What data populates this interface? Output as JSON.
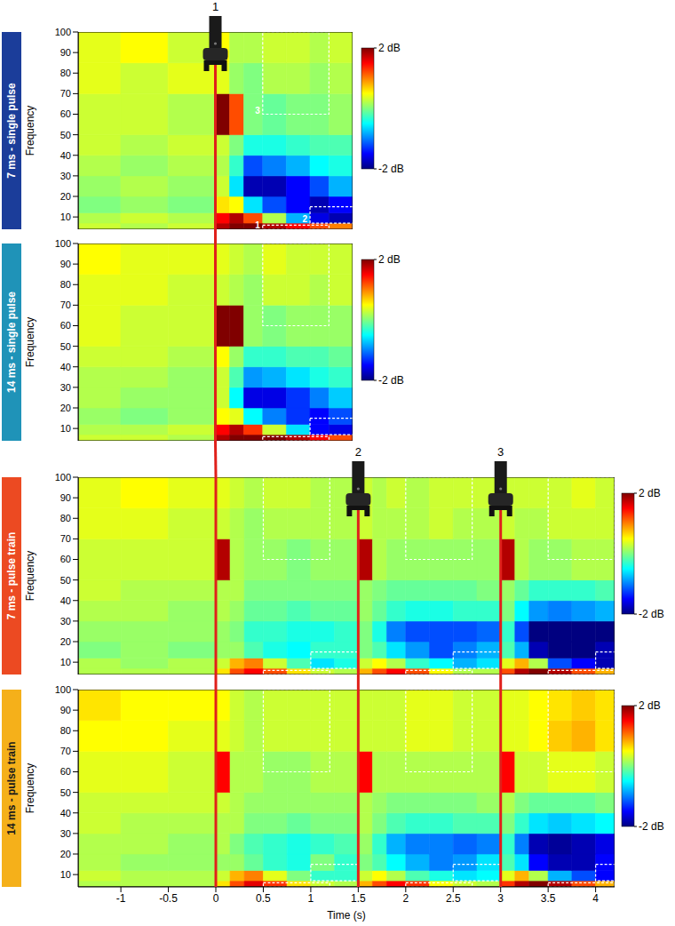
{
  "chart_data": [
    {
      "type": "heatmap",
      "title": "7 ms - single pulse",
      "color": "#1b3d9a",
      "ylabel": "Frequency",
      "xlim": [
        -1.45,
        1.45
      ],
      "ylim": [
        4,
        100
      ],
      "yticks": [
        10,
        20,
        30,
        40,
        50,
        60,
        70,
        80,
        90,
        100
      ],
      "tick_labels": "y",
      "t_edges": [
        -1.45,
        -1,
        -0.5,
        0,
        0.15,
        0.3,
        0.5,
        0.75,
        1,
        1.2,
        1.45
      ],
      "f_edges": [
        4,
        7,
        12,
        20,
        30,
        40,
        50,
        70,
        85,
        100
      ],
      "cells": [
        [
          0.3,
          0.2,
          0.3,
          1.8,
          2,
          2,
          1.8,
          1.5,
          1.2,
          1.0
        ],
        [
          0.2,
          0.3,
          0.2,
          1.5,
          1.8,
          1.2,
          0.2,
          -0.8,
          -1.6,
          -1.8
        ],
        [
          0,
          0.1,
          0,
          0.6,
          0.5,
          -0.6,
          -1.2,
          -1.5,
          -1.8,
          -1.5
        ],
        [
          0.1,
          0.2,
          0.1,
          0.3,
          -0.6,
          -1.8,
          -1.8,
          -1.5,
          -1.2,
          -0.8
        ],
        [
          0.2,
          0.1,
          0.2,
          0.2,
          -0.3,
          -1.2,
          -1.0,
          -0.8,
          -0.5,
          -0.4
        ],
        [
          0.3,
          0.2,
          0.3,
          0.3,
          0,
          -0.4,
          -0.4,
          -0.3,
          -0.2,
          -0.2
        ],
        [
          0.3,
          0.3,
          0.2,
          2,
          1.2,
          0,
          -0.1,
          0,
          0,
          0.1
        ],
        [
          0.4,
          0.3,
          0.4,
          0.4,
          0.1,
          0,
          0.2,
          0.2,
          0.1,
          0.2
        ],
        [
          0.4,
          0.5,
          0.3,
          0.5,
          0.2,
          0.2,
          0.3,
          0.3,
          0.2,
          0.3
        ]
      ],
      "colorbar": {
        "range": [
          -2,
          2
        ],
        "ticks": [
          {
            "value": 2,
            "label": "2 dB"
          },
          {
            "value": -2,
            "label": "-2 dB"
          }
        ]
      },
      "stimuli": [
        {
          "t": 0,
          "label": "1"
        }
      ],
      "rois": [
        {
          "label": "1",
          "t": [
            0.5,
            1.2
          ],
          "f": [
            4,
            6
          ]
        },
        {
          "label": "2",
          "t": [
            1,
            1.5
          ],
          "f": [
            7,
            15
          ]
        },
        {
          "label": "3",
          "t": [
            0.5,
            1.2
          ],
          "f": [
            60,
            100
          ]
        }
      ]
    },
    {
      "type": "heatmap",
      "title": "14 ms - single pulse",
      "color": "#1f93b8",
      "ylabel": "Frequency",
      "xlim": [
        -1.45,
        1.45
      ],
      "ylim": [
        4,
        100
      ],
      "yticks": [
        10,
        20,
        30,
        40,
        50,
        60,
        70,
        80,
        90,
        100
      ],
      "tick_labels": "y",
      "t_edges": [
        -1.45,
        -1,
        -0.5,
        0,
        0.15,
        0.3,
        0.5,
        0.75,
        1,
        1.2,
        1.45
      ],
      "f_edges": [
        4,
        7,
        12,
        20,
        30,
        40,
        50,
        70,
        85,
        100
      ],
      "cells": [
        [
          0.3,
          0.3,
          0.2,
          1.8,
          2,
          2,
          2,
          1.8,
          1.5,
          1.2
        ],
        [
          0.2,
          0.2,
          0.3,
          1.5,
          1.8,
          1.3,
          0.3,
          -0.6,
          -1.5,
          -1.6
        ],
        [
          0.1,
          0,
          0.1,
          0.5,
          0.4,
          -0.5,
          -1.0,
          -1.3,
          -1.5,
          -1.2
        ],
        [
          0.2,
          0.1,
          0.1,
          0.3,
          -0.5,
          -1.6,
          -1.6,
          -1.3,
          -1.0,
          -0.7
        ],
        [
          0.2,
          0.2,
          0.1,
          0.3,
          -0.2,
          -0.9,
          -0.8,
          -0.6,
          -0.4,
          -0.3
        ],
        [
          0.3,
          0.3,
          0.2,
          0.5,
          0.1,
          -0.3,
          -0.3,
          -0.2,
          -0.2,
          -0.1
        ],
        [
          0.4,
          0.3,
          0.3,
          2,
          2,
          0.1,
          0,
          0.1,
          0.1,
          0.1
        ],
        [
          0.4,
          0.4,
          0.3,
          0.3,
          0.2,
          0.1,
          0.3,
          0.3,
          0.2,
          0.3
        ],
        [
          0.5,
          0.4,
          0.4,
          0.4,
          0.3,
          0.2,
          0.4,
          0.3,
          0.3,
          0.3
        ]
      ],
      "colorbar": {
        "range": [
          -2,
          2
        ],
        "ticks": [
          {
            "value": 2,
            "label": "2 dB"
          },
          {
            "value": -2,
            "label": "-2 dB"
          }
        ]
      },
      "stimuli": [
        {
          "t": 0
        }
      ],
      "rois": [
        {
          "t": [
            0.5,
            1.2
          ],
          "f": [
            4,
            6
          ]
        },
        {
          "t": [
            1,
            1.5
          ],
          "f": [
            7,
            15
          ]
        },
        {
          "t": [
            0.5,
            1.2
          ],
          "f": [
            60,
            100
          ]
        }
      ]
    },
    {
      "type": "heatmap",
      "title": "7 ms - pulse train",
      "color": "#ec4a22",
      "ylabel": "Frequency",
      "xlim": [
        -1.45,
        4.2
      ],
      "ylim": [
        4,
        100
      ],
      "yticks": [
        10,
        20,
        30,
        40,
        50,
        60,
        70,
        80,
        90,
        100
      ],
      "tick_labels": "y",
      "t_edges": [
        -1.45,
        -1,
        -0.5,
        0,
        0.15,
        0.3,
        0.5,
        0.75,
        1,
        1.25,
        1.5,
        1.65,
        1.8,
        2,
        2.25,
        2.5,
        2.75,
        3,
        3.15,
        3.3,
        3.5,
        3.75,
        4,
        4.2
      ],
      "f_edges": [
        4,
        7,
        12,
        20,
        30,
        40,
        50,
        70,
        85,
        100
      ],
      "cells": [
        [
          0.2,
          0.2,
          0.2,
          0.6,
          1.2,
          1.5,
          1.2,
          0.6,
          0.3,
          0.2,
          0.8,
          1.2,
          1.5,
          1.2,
          0.5,
          0.2,
          0.2,
          1.2,
          1.8,
          2,
          1.8,
          1.2,
          0.8
        ],
        [
          0.2,
          0.1,
          0.2,
          0.3,
          0.8,
          1.0,
          0.3,
          -0.2,
          -0.6,
          -0.4,
          0.3,
          0.5,
          0.2,
          -0.3,
          -0.5,
          -0.8,
          -0.6,
          0.4,
          0.8,
          0.2,
          -1.2,
          -1.5,
          -1.8
        ],
        [
          0,
          0.1,
          0,
          0.1,
          0.1,
          -0.2,
          -0.4,
          -0.5,
          -0.3,
          -0.3,
          0,
          -0.2,
          -0.6,
          -0.9,
          -1.2,
          -1.0,
          -0.8,
          -0.2,
          -0.8,
          -1.8,
          -2,
          -2,
          -1.8
        ],
        [
          0.1,
          0.1,
          0.1,
          0.1,
          0,
          -0.3,
          -0.3,
          -0.4,
          -0.4,
          -0.3,
          0,
          -0.4,
          -1.0,
          -1.2,
          -1.2,
          -1.2,
          -1.1,
          -0.3,
          -1.2,
          -2,
          -2,
          -2,
          -2
        ],
        [
          0.2,
          0.2,
          0.1,
          0.2,
          0.1,
          -0.1,
          -0.1,
          -0.2,
          -0.1,
          -0.1,
          0.1,
          -0.1,
          -0.3,
          -0.4,
          -0.4,
          -0.3,
          -0.3,
          0,
          -0.5,
          -0.9,
          -1.0,
          -0.9,
          -0.8
        ],
        [
          0.3,
          0.2,
          0.2,
          0.2,
          0.2,
          0,
          0,
          0,
          0,
          0,
          0.1,
          0,
          -0.1,
          -0.1,
          -0.1,
          -0.1,
          0,
          0.1,
          -0.1,
          -0.3,
          -0.3,
          -0.3,
          -0.2
        ],
        [
          0.3,
          0.3,
          0.3,
          1.8,
          0.2,
          0.1,
          0.1,
          0,
          0.1,
          0.1,
          1.8,
          0.2,
          0.1,
          0.1,
          0.1,
          0.1,
          0.1,
          1.8,
          0.2,
          0.1,
          0.1,
          0.2,
          0.2
        ],
        [
          0.4,
          0.4,
          0.3,
          0.3,
          0.2,
          0.1,
          0.2,
          0.2,
          0.2,
          0.2,
          0.3,
          0.2,
          0.2,
          0.2,
          0.3,
          0.2,
          0.2,
          0.3,
          0.2,
          0.2,
          0.3,
          0.3,
          0.3
        ],
        [
          0.4,
          0.5,
          0.4,
          0.4,
          0.3,
          0.2,
          0.3,
          0.3,
          0.2,
          0.2,
          0.3,
          0.2,
          0.3,
          0.2,
          0.3,
          0.3,
          0.3,
          0.3,
          0.3,
          0.3,
          0.3,
          0.4,
          0.3
        ]
      ],
      "colorbar": {
        "range": [
          -2,
          2
        ],
        "ticks": [
          {
            "value": 2,
            "label": "2 dB"
          },
          {
            "value": -2,
            "label": "-2 dB"
          }
        ]
      },
      "stimuli": [
        {
          "t": 0
        },
        {
          "t": 1.5,
          "label": "2"
        },
        {
          "t": 3,
          "label": "3"
        }
      ],
      "rois": [
        {
          "t": [
            0.5,
            1.2
          ],
          "f": [
            4,
            6
          ]
        },
        {
          "t": [
            1,
            1.5
          ],
          "f": [
            7,
            15
          ]
        },
        {
          "t": [
            0.5,
            1.2
          ],
          "f": [
            60,
            100
          ]
        },
        {
          "t": [
            2,
            2.7
          ],
          "f": [
            4,
            6
          ]
        },
        {
          "t": [
            2.5,
            3
          ],
          "f": [
            7,
            15
          ]
        },
        {
          "t": [
            2,
            2.7
          ],
          "f": [
            60,
            100
          ]
        },
        {
          "t": [
            3.5,
            4.2
          ],
          "f": [
            4,
            6
          ]
        },
        {
          "t": [
            4,
            4.5
          ],
          "f": [
            7,
            15
          ]
        },
        {
          "t": [
            3.5,
            4.2
          ],
          "f": [
            60,
            100
          ]
        }
      ]
    },
    {
      "type": "heatmap",
      "title": "14 ms - pulse train",
      "color": "#f5b01a",
      "ylabel": "Frequency",
      "xlabel": "Time (s)",
      "xlim": [
        -1.45,
        4.2
      ],
      "ylim": [
        4,
        100
      ],
      "xticks": [
        -1,
        -0.5,
        0,
        0.5,
        1,
        1.5,
        2,
        2.5,
        3,
        3.5,
        4
      ],
      "yticks": [
        10,
        20,
        30,
        40,
        50,
        60,
        70,
        80,
        90,
        100
      ],
      "t_edges": [
        -1.45,
        -1,
        -0.5,
        0,
        0.15,
        0.3,
        0.5,
        0.75,
        1,
        1.25,
        1.5,
        1.65,
        1.8,
        2,
        2.25,
        2.5,
        2.75,
        3,
        3.15,
        3.3,
        3.5,
        3.75,
        4,
        4.2
      ],
      "f_edges": [
        4,
        7,
        12,
        20,
        30,
        40,
        50,
        70,
        85,
        100
      ],
      "cells": [
        [
          0.2,
          0.2,
          0.2,
          0.6,
          1.2,
          1.6,
          1.3,
          0.6,
          0.3,
          0.2,
          0.8,
          1.2,
          1.5,
          1.3,
          0.5,
          0.3,
          0.2,
          1.3,
          1.8,
          2,
          1.8,
          1.2,
          0.8
        ],
        [
          0.3,
          0.2,
          0.2,
          0.3,
          0.8,
          1.0,
          0.4,
          0,
          -0.3,
          -0.3,
          0.3,
          0.5,
          0.2,
          -0.2,
          -0.4,
          -0.6,
          -0.5,
          0.4,
          0.8,
          0.2,
          -0.8,
          -1.2,
          -1.5
        ],
        [
          0.2,
          0.1,
          0.1,
          0.1,
          0.1,
          -0.1,
          -0.3,
          -0.4,
          0,
          -0.3,
          0,
          -0.2,
          -0.5,
          -0.8,
          -1.0,
          -0.9,
          -0.6,
          -0.2,
          -0.6,
          -1.5,
          -1.8,
          -1.8,
          -1.5
        ],
        [
          0.2,
          0.2,
          0.1,
          0.2,
          0,
          -0.2,
          -0.3,
          -0.4,
          -0.3,
          -0.2,
          0.1,
          -0.3,
          -0.8,
          -1.0,
          -1.0,
          -1.1,
          -1.0,
          -0.3,
          -1.0,
          -1.8,
          -1.9,
          -1.8,
          -1.6
        ],
        [
          0.3,
          0.2,
          0.2,
          0.2,
          0.2,
          0,
          0,
          -0.1,
          0,
          0,
          0.2,
          0,
          -0.2,
          -0.3,
          -0.3,
          -0.2,
          -0.2,
          0,
          -0.3,
          -0.6,
          -0.7,
          -0.6,
          -0.5
        ],
        [
          0.3,
          0.3,
          0.3,
          0.3,
          0.2,
          0.1,
          0.1,
          0.1,
          0.1,
          0.1,
          0.2,
          0.1,
          0,
          0,
          0,
          0,
          0.1,
          0.2,
          0,
          -0.1,
          -0.1,
          -0.1,
          0
        ],
        [
          0.4,
          0.4,
          0.3,
          1.5,
          0.2,
          0.2,
          0.1,
          0.1,
          0.2,
          0.2,
          1.5,
          0.2,
          0.2,
          0.2,
          0.2,
          0.2,
          0.2,
          1.5,
          0.3,
          0.3,
          0.4,
          0.4,
          0.3
        ],
        [
          0.5,
          0.5,
          0.4,
          0.4,
          0.3,
          0.2,
          0.3,
          0.3,
          0.3,
          0.3,
          0.3,
          0.3,
          0.3,
          0.4,
          0.4,
          0.3,
          0.3,
          0.4,
          0.4,
          0.5,
          0.7,
          0.8,
          0.6
        ],
        [
          0.6,
          0.5,
          0.5,
          0.5,
          0.3,
          0.2,
          0.3,
          0.3,
          0.3,
          0.3,
          0.3,
          0.3,
          0.3,
          0.4,
          0.4,
          0.3,
          0.3,
          0.4,
          0.4,
          0.5,
          0.6,
          0.7,
          0.6
        ]
      ],
      "colorbar": {
        "range": [
          -2,
          2
        ],
        "ticks": [
          {
            "value": 2,
            "label": "2 dB"
          },
          {
            "value": -2,
            "label": "-2 dB"
          }
        ]
      },
      "stimuli": [
        {
          "t": 0
        },
        {
          "t": 1.5
        },
        {
          "t": 3
        }
      ],
      "rois": [
        {
          "t": [
            0.5,
            1.2
          ],
          "f": [
            4,
            6
          ]
        },
        {
          "t": [
            1,
            1.5
          ],
          "f": [
            7,
            15
          ]
        },
        {
          "t": [
            0.5,
            1.2
          ],
          "f": [
            60,
            100
          ]
        },
        {
          "t": [
            2,
            2.7
          ],
          "f": [
            4,
            6
          ]
        },
        {
          "t": [
            2.5,
            3
          ],
          "f": [
            7,
            15
          ]
        },
        {
          "t": [
            2,
            2.7
          ],
          "f": [
            60,
            100
          ]
        },
        {
          "t": [
            3.5,
            4.2
          ],
          "f": [
            4,
            6
          ]
        },
        {
          "t": [
            4,
            4.5
          ],
          "f": [
            7,
            15
          ]
        },
        {
          "t": [
            3.5,
            4.2
          ],
          "f": [
            60,
            100
          ]
        }
      ]
    }
  ]
}
